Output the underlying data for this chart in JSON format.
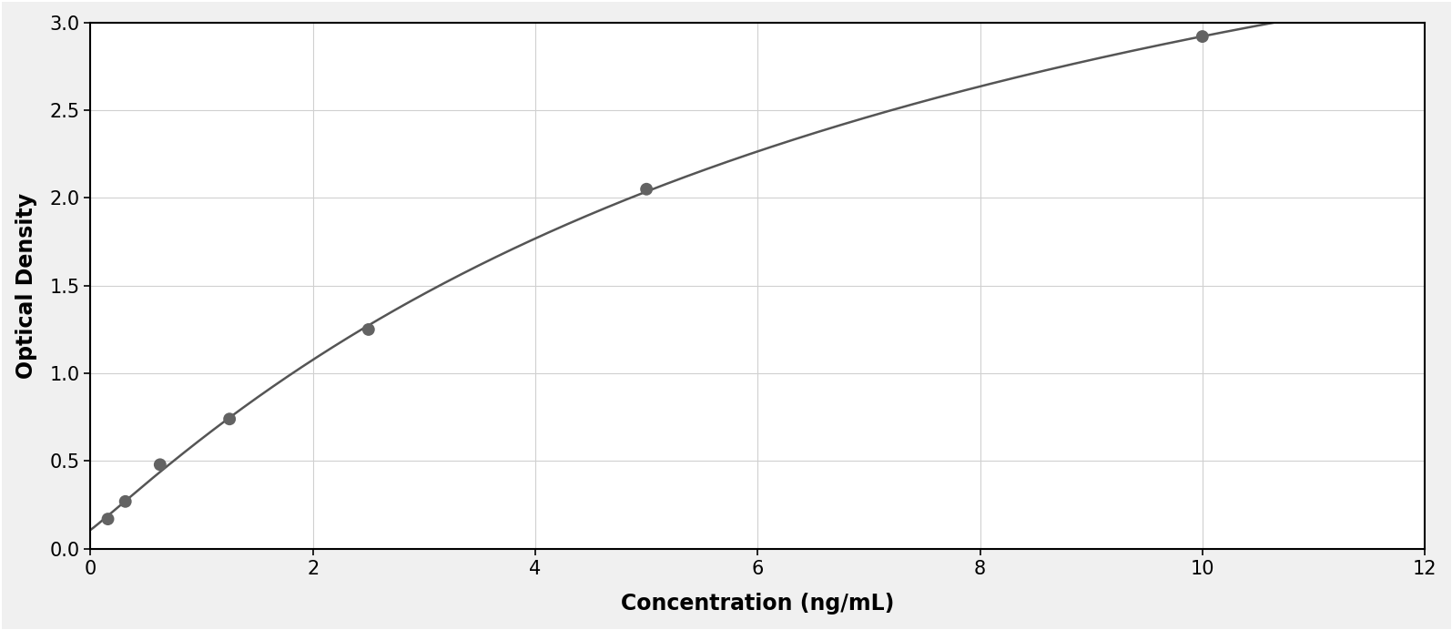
{
  "x_data": [
    0.156,
    0.313,
    0.625,
    1.25,
    2.5,
    5.0,
    10.0
  ],
  "y_data": [
    0.17,
    0.27,
    0.48,
    0.74,
    1.25,
    2.05,
    2.92
  ],
  "point_color": "#636363",
  "line_color": "#555555",
  "xlabel": "Concentration (ng/mL)",
  "ylabel": "Optical Density",
  "xlim": [
    0,
    12
  ],
  "ylim": [
    0,
    3.0
  ],
  "xticks": [
    0,
    2,
    4,
    6,
    8,
    10,
    12
  ],
  "yticks": [
    0,
    0.5,
    1.0,
    1.5,
    2.0,
    2.5,
    3.0
  ],
  "xlabel_fontsize": 17,
  "ylabel_fontsize": 17,
  "tick_fontsize": 15,
  "marker_size": 100,
  "line_width": 1.8,
  "plot_bg_color": "#ffffff",
  "grid_color": "#d0d0d0",
  "figure_bg": "#f0f0f0",
  "border_color": "#888888"
}
